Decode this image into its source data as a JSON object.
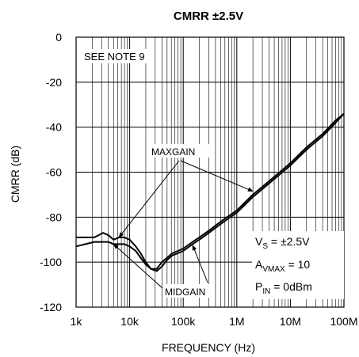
{
  "chart_data": {
    "type": "line",
    "title": "CMRR ±2.5V",
    "xlabel": "FREQUENCY (Hz)",
    "ylabel": "CMRR (dB)",
    "x_scale": "log",
    "xlim": [
      1000,
      100000000
    ],
    "ylim": [
      -120,
      0
    ],
    "grid": true,
    "x_ticks": [
      1000,
      10000,
      100000,
      1000000,
      10000000,
      100000000
    ],
    "x_tick_labels": [
      "1k",
      "10k",
      "100k",
      "1M",
      "10M",
      "100M"
    ],
    "y_ticks": [
      0,
      -20,
      -40,
      -60,
      -80,
      -100,
      -120
    ],
    "y_tick_labels": [
      "0",
      "-20",
      "-40",
      "-60",
      "-80",
      "-100",
      "-120"
    ],
    "series": [
      {
        "name": "MAXGAIN",
        "color": "#000000",
        "x": [
          1000,
          1500,
          2200,
          3200,
          4000,
          5000,
          6300,
          8000,
          10000,
          13000,
          16000,
          20000,
          25000,
          32000,
          40000,
          50000,
          63000,
          80000,
          100000,
          150000,
          200000,
          300000,
          500000,
          1000000,
          2000000,
          4000000,
          10000000,
          20000000,
          40000000,
          70000000,
          100000000
        ],
        "y": [
          -89,
          -89,
          -89,
          -87,
          -88,
          -90,
          -89,
          -89,
          -90,
          -93,
          -96,
          -100,
          -103,
          -103,
          -100,
          -98,
          -96,
          -95,
          -94,
          -91,
          -89,
          -86,
          -82,
          -77,
          -70,
          -64,
          -56,
          -49,
          -43,
          -37,
          -34
        ]
      },
      {
        "name": "MIDGAIN",
        "color": "#000000",
        "x": [
          1000,
          1500,
          2200,
          3200,
          4000,
          5000,
          6300,
          8000,
          10000,
          13000,
          16000,
          20000,
          25000,
          32000,
          40000,
          50000,
          63000,
          80000,
          100000,
          150000,
          200000,
          300000,
          500000,
          1000000,
          2000000,
          4000000,
          10000000,
          20000000,
          40000000,
          70000000,
          100000000
        ],
        "y": [
          -93,
          -92,
          -91,
          -91,
          -91,
          -92,
          -92,
          -92,
          -93,
          -95,
          -98,
          -101,
          -103,
          -104,
          -102,
          -99,
          -97,
          -96,
          -95,
          -92,
          -90,
          -87,
          -83,
          -78,
          -71,
          -65,
          -57,
          -50,
          -44,
          -38,
          -34
        ]
      }
    ],
    "annotations": {
      "note": "SEE NOTE 9",
      "maxgain_label": "MAXGAIN",
      "midgain_label": "MIDGAIN",
      "conditions": [
        {
          "main": "V",
          "sub": "S",
          "rest": " = ±2.5V"
        },
        {
          "main": "A",
          "sub": "VMAX",
          "rest": " = 10"
        },
        {
          "main": "P",
          "sub": "IN",
          "rest": " = 0dBm"
        }
      ]
    }
  }
}
